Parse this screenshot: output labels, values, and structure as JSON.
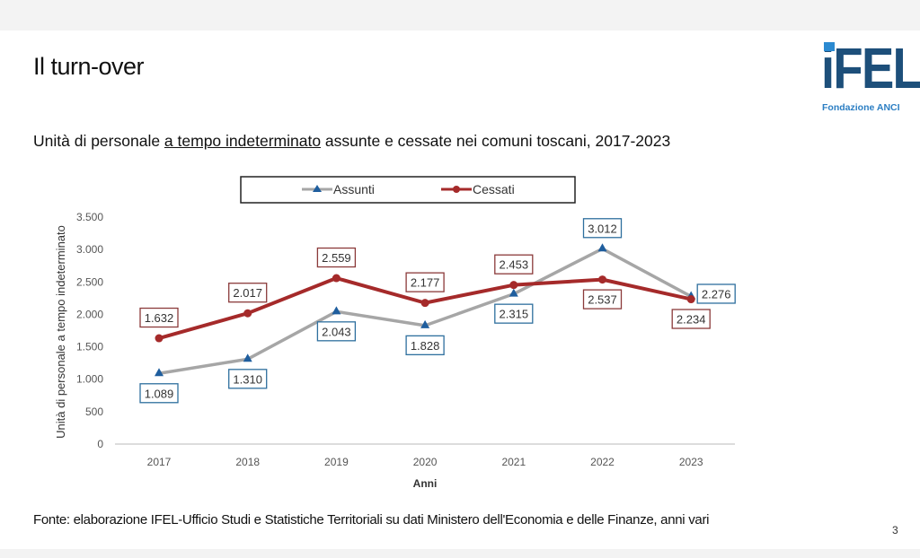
{
  "slide": {
    "title": "Il turn-over",
    "logo": {
      "name": "iFEL",
      "subtitle": "Fondazione ANCI"
    },
    "subtitle_pre": "Unità di personale ",
    "subtitle_underlined": "a tempo indeterminato",
    "subtitle_post": " assunte e cessate nei comuni toscani, 2017-2023",
    "footer": "Fonte: elaborazione IFEL-Ufficio Studi e Statistiche Territoriali su dati Ministero dell'Economia e delle Finanze, anni vari",
    "page_number": "3"
  },
  "colors": {
    "assunti_line": "#a6a6a6",
    "assunti_marker": "#1f5e9e",
    "assunti_label_border": "#2e6f9e",
    "cessati_line": "#a52a2a",
    "cessati_label_border": "#8b3a3a",
    "logo_blue": "#1d4f7a"
  },
  "chart_data": {
    "type": "line",
    "title": "Unità di personale a tempo indeterminato assunte e cessate nei comuni toscani, 2017-2023",
    "xlabel": "Anni",
    "ylabel": "Unità di personale a tempo indeterminato",
    "categories": [
      "2017",
      "2018",
      "2019",
      "2020",
      "2021",
      "2022",
      "2023"
    ],
    "ylim": [
      0,
      3500
    ],
    "yticks": [
      0,
      500,
      1000,
      1500,
      2000,
      2500,
      3000,
      3500
    ],
    "ytick_labels": [
      "0",
      "500",
      "1.000",
      "1.500",
      "2.000",
      "2.500",
      "3.000",
      "3.500"
    ],
    "grid": false,
    "legend": {
      "placement": "top",
      "entries": [
        "Assunti",
        "Cessati"
      ]
    },
    "series": [
      {
        "name": "Assunti",
        "marker": "triangle",
        "values": [
          1089,
          1310,
          2043,
          1828,
          2315,
          3012,
          2276
        ],
        "labels": [
          "1.089",
          "1.310",
          "2.043",
          "1.828",
          "2.315",
          "3.012",
          "2.276"
        ],
        "label_pos": [
          "below",
          "below",
          "below",
          "below",
          "below",
          "above",
          "right"
        ]
      },
      {
        "name": "Cessati",
        "marker": "circle",
        "values": [
          1632,
          2017,
          2559,
          2177,
          2453,
          2537,
          2234
        ],
        "labels": [
          "1.632",
          "2.017",
          "2.559",
          "2.177",
          "2.453",
          "2.537",
          "2.234"
        ],
        "label_pos": [
          "above",
          "above",
          "above",
          "above",
          "above",
          "below",
          "below"
        ]
      }
    ]
  }
}
